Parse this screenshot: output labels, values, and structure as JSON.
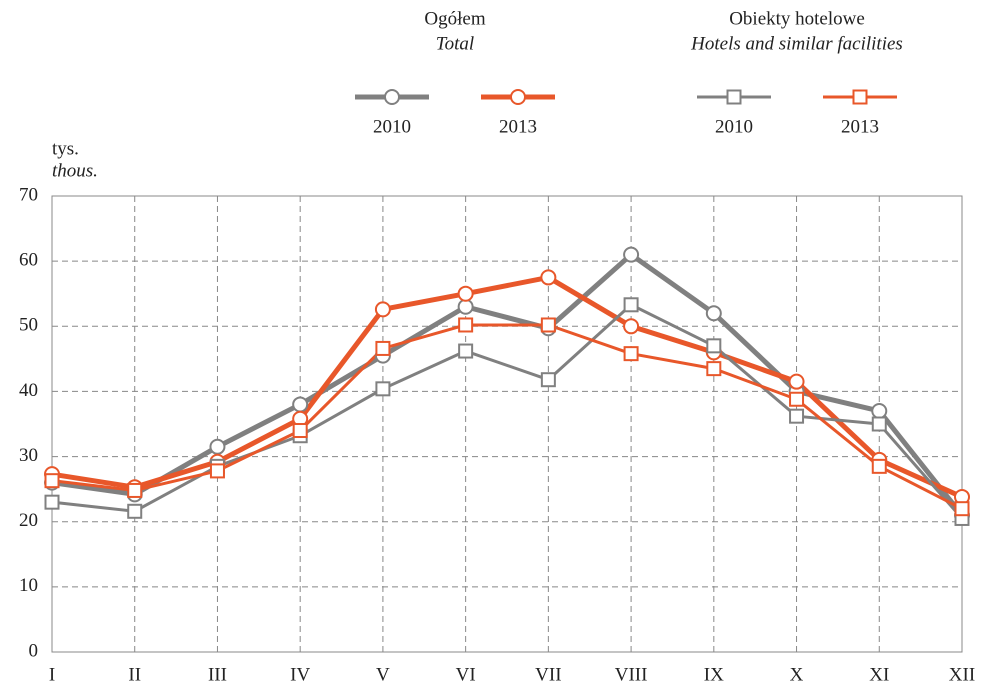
{
  "chart_data": {
    "type": "line",
    "legend_groups": [
      {
        "title": "Ogółem",
        "subtitle": "Total"
      },
      {
        "title": "Obiekty hotelowe",
        "subtitle": "Hotels and similar facilities"
      }
    ],
    "y_label": "tys.",
    "y_label_en": "thous.",
    "categories": [
      "I",
      "II",
      "III",
      "IV",
      "V",
      "VI",
      "VII",
      "VIII",
      "IX",
      "X",
      "XI",
      "XII"
    ],
    "series": [
      {
        "name": "2010",
        "color": "#808080",
        "marker": "circle",
        "values": [
          26,
          24.2,
          31.5,
          38,
          45.5,
          53,
          49.7,
          61,
          52,
          40,
          37,
          21
        ]
      },
      {
        "name": "2013",
        "color": "#e8572a",
        "marker": "circle",
        "values": [
          27.3,
          25.3,
          29.2,
          35.8,
          52.6,
          55,
          57.5,
          50,
          46,
          41.5,
          29.5,
          23.8
        ]
      },
      {
        "name": "2010",
        "color": "#808080",
        "marker": "square",
        "values": [
          23,
          21.6,
          28.5,
          33.2,
          40.4,
          46.2,
          41.8,
          53.3,
          47,
          36.2,
          35,
          20.5
        ]
      },
      {
        "name": "2013",
        "color": "#e8572a",
        "marker": "square",
        "values": [
          26.3,
          24.8,
          27.8,
          34,
          46.6,
          50.2,
          50.2,
          45.8,
          43.5,
          38.8,
          28.5,
          22
        ]
      }
    ],
    "ylim": [
      0,
      70
    ],
    "yticks": [
      0,
      10,
      20,
      30,
      40,
      50,
      60,
      70
    ],
    "grid": true
  }
}
